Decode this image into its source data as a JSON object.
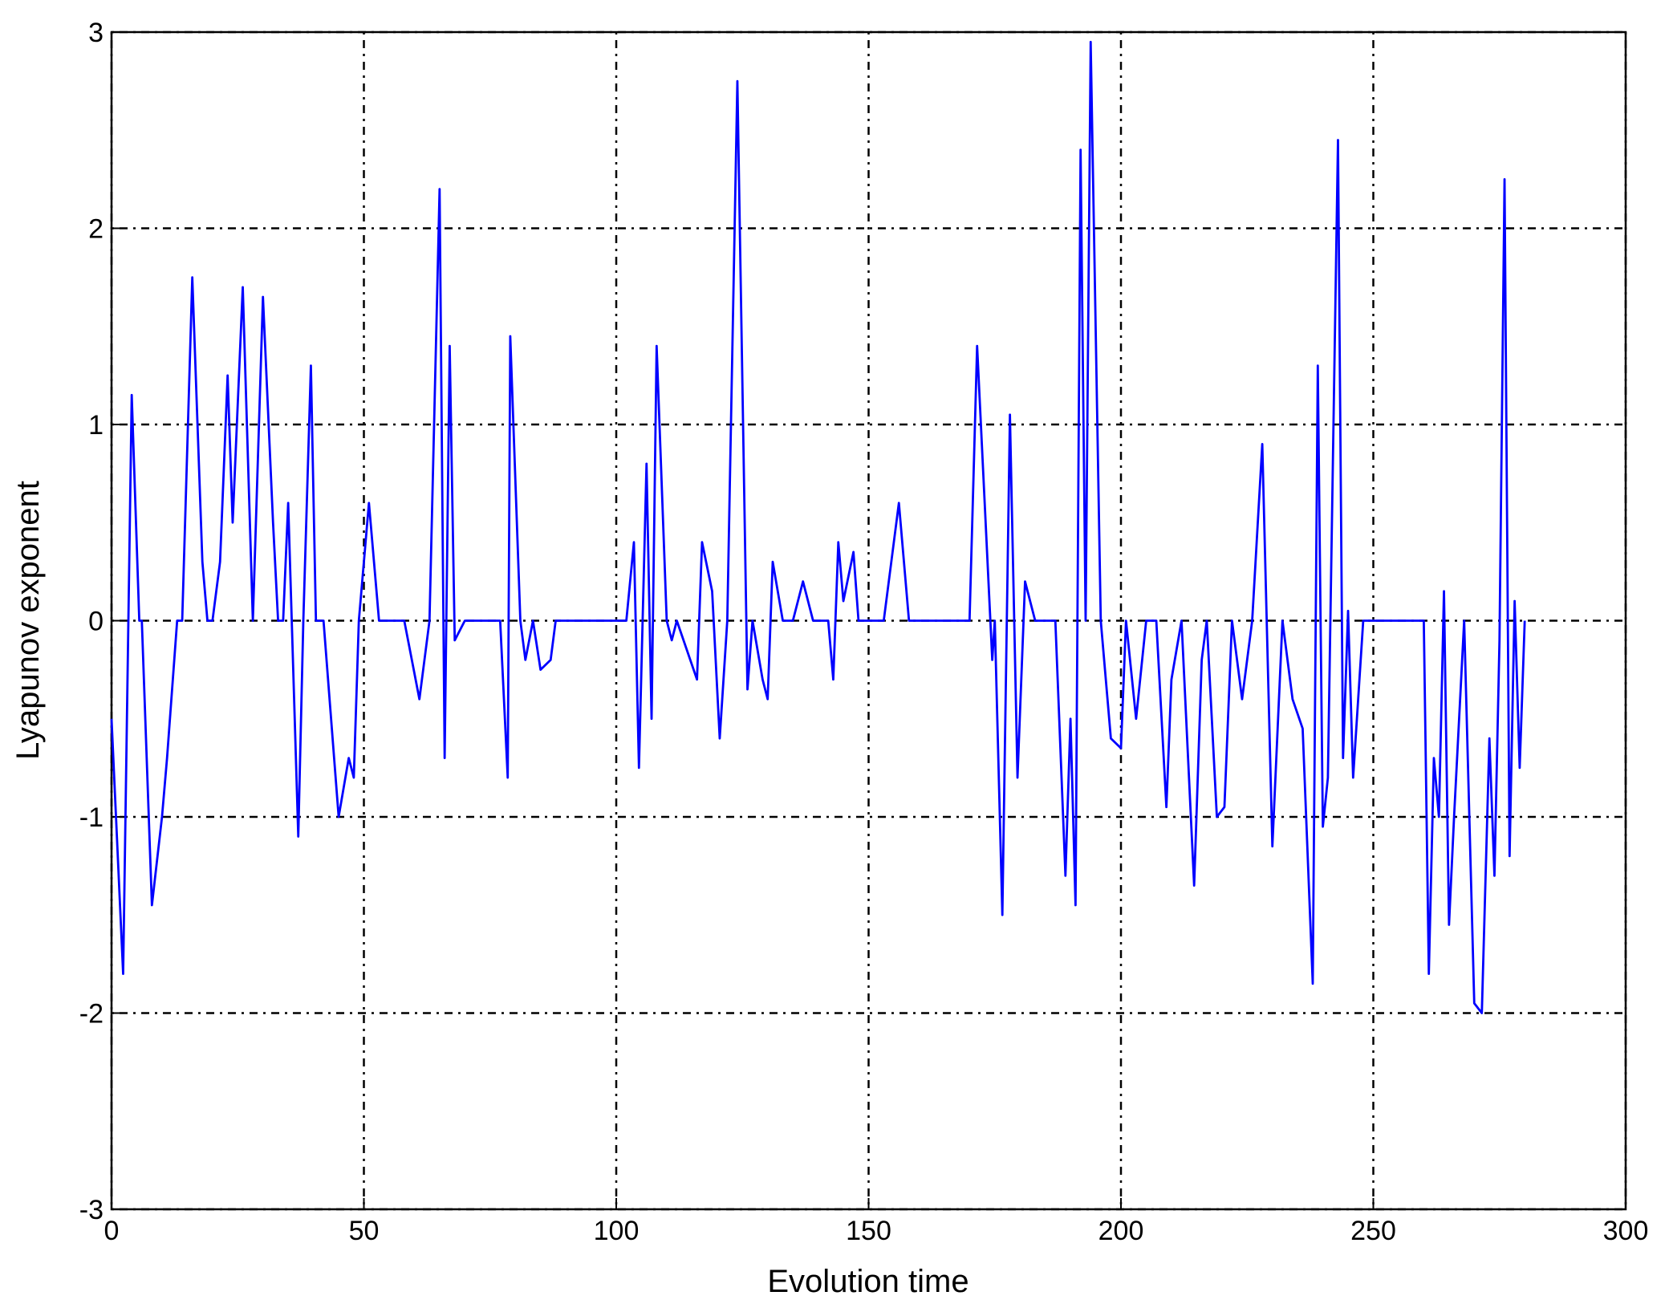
{
  "chart_data": {
    "type": "line",
    "xlabel": "Evolution time",
    "ylabel": "Lyapunov exponent",
    "x": [
      0,
      2.3,
      4,
      5.5,
      6,
      8,
      10,
      11,
      13,
      14,
      16,
      18,
      19,
      20,
      21.5,
      23,
      24,
      26,
      28,
      30,
      32,
      33,
      34,
      35,
      37,
      38,
      39.5,
      40.5,
      42,
      45,
      47,
      48,
      49,
      51,
      53,
      58,
      61,
      63,
      65,
      66,
      67,
      68,
      70,
      77,
      78.5,
      79,
      81,
      82,
      83.5,
      85,
      87,
      88,
      102,
      103.5,
      104.5,
      106,
      107,
      108,
      110,
      111,
      112,
      116,
      117,
      119,
      120.5,
      122,
      124,
      126,
      127,
      129,
      130,
      131,
      133,
      135,
      137,
      139,
      142,
      143,
      144,
      145,
      147,
      148,
      153,
      156,
      158,
      170,
      171.5,
      173,
      174.5,
      175,
      176.5,
      178,
      179.5,
      181,
      183,
      187,
      189,
      190,
      191,
      192,
      193,
      194,
      196,
      198,
      200,
      201,
      203,
      205,
      207,
      209,
      210,
      212,
      214.5,
      216,
      217,
      219,
      220.5,
      222,
      224,
      226,
      228,
      230,
      232,
      234,
      236,
      238,
      239,
      240,
      241,
      243,
      244,
      245,
      246,
      248,
      260,
      261,
      262,
      263,
      264,
      265,
      266,
      268,
      270,
      271.5,
      273,
      274,
      275,
      276,
      277,
      278,
      279,
      280
    ],
    "series": [
      {
        "color": "#0000ff",
        "values": [
          -0.5,
          -1.8,
          1.15,
          0,
          0,
          -1.45,
          -1,
          -0.7,
          0,
          0,
          1.75,
          0.3,
          0,
          0,
          0.3,
          1.25,
          0.5,
          1.7,
          0,
          1.65,
          0.5,
          0,
          0,
          0.6,
          -1.1,
          0,
          1.3,
          0,
          0,
          -1,
          -0.7,
          -0.8,
          0,
          0.6,
          0,
          0,
          -0.4,
          0,
          2.2,
          -0.7,
          1.4,
          -0.1,
          0,
          0,
          -0.8,
          1.45,
          0,
          -0.2,
          0,
          -0.25,
          -0.2,
          0,
          0,
          0.4,
          -0.75,
          0.8,
          -0.5,
          1.4,
          0,
          -0.1,
          0,
          -0.3,
          0.4,
          0.15,
          -0.6,
          0,
          2.75,
          -0.35,
          0,
          -0.3,
          -0.4,
          0.3,
          0,
          0,
          0.2,
          0,
          0,
          -0.3,
          0.4,
          0.1,
          0.35,
          0,
          0,
          0.6,
          0,
          0,
          1.4,
          0.6,
          -0.2,
          0,
          -1.5,
          1.05,
          -0.8,
          0.2,
          0,
          0,
          -1.3,
          -0.5,
          -1.45,
          2.4,
          0,
          2.95,
          0,
          -0.6,
          -0.65,
          0,
          -0.5,
          0,
          0,
          -0.95,
          -0.3,
          0,
          -1.35,
          -0.2,
          0,
          -1,
          -0.95,
          0,
          -0.4,
          0,
          0.9,
          -1.15,
          0,
          -0.4,
          -0.55,
          -1.85,
          1.3,
          -1.05,
          -0.8,
          2.45,
          -0.7,
          0.05,
          -0.8,
          0,
          0,
          -1.8,
          -0.7,
          -1,
          0.15,
          -1.55,
          -1,
          0,
          -1.95,
          -2,
          -0.6,
          -1.3,
          -0.1,
          2.25,
          -1.2,
          0.1,
          -0.75,
          0
        ]
      }
    ],
    "xlim": [
      0,
      300
    ],
    "xticks": [
      0,
      50,
      100,
      150,
      200,
      250,
      300
    ],
    "ylim": [
      -3,
      3
    ],
    "yticks": [
      -3,
      -2,
      -1,
      0,
      1,
      2,
      3
    ],
    "grid": true
  }
}
